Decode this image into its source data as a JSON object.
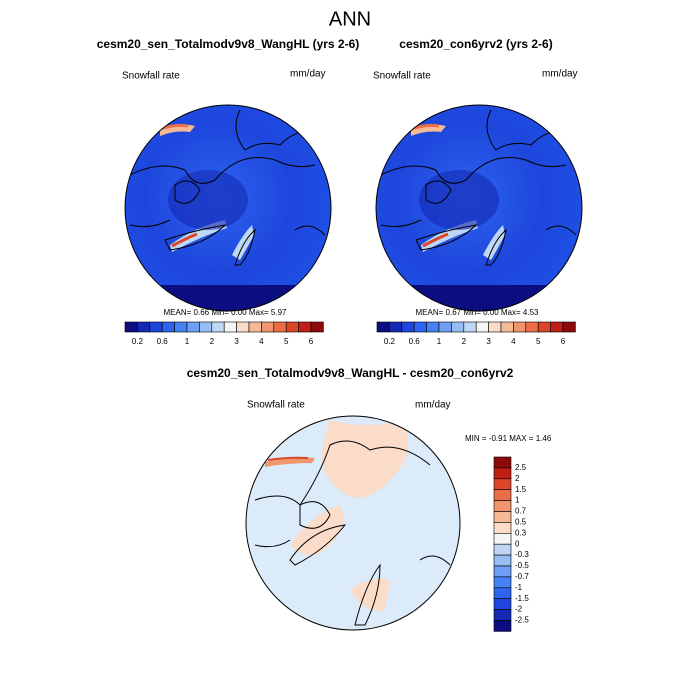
{
  "title": "ANN",
  "panels": [
    {
      "title": "cesm20_sen_Totalmodv9v8_WangHL (yrs 2-6)",
      "variable": "Snowfall rate",
      "units": "mm/day",
      "stats": "MEAN=   0.66  Min=   0.00  Max=   5.97"
    },
    {
      "title": "cesm20_con6yrv2 (yrs 2-6)",
      "variable": "Snowfall rate",
      "units": "mm/day",
      "stats": "MEAN=   0.67  Min=   0.00  Max=   4.53"
    }
  ],
  "colorbar_labels": [
    "0.2",
    "0.6",
    "1",
    "2",
    "3",
    "4",
    "5",
    "6"
  ],
  "difference": {
    "title": "cesm20_sen_Totalmodv9v8_WangHL - cesm20_con6yrv2",
    "variable": "Snowfall rate",
    "units": "mm/day",
    "stats": "MIN =  -0.91 MAX =   1.46",
    "colorbar_labels": [
      "2.5",
      "2",
      "1.5",
      "1",
      "0.7",
      "0.5",
      "0.3",
      "0",
      "-0.3",
      "-0.5",
      "-0.7",
      "-1",
      "-1.5",
      "-2",
      "-2.5"
    ]
  }
}
